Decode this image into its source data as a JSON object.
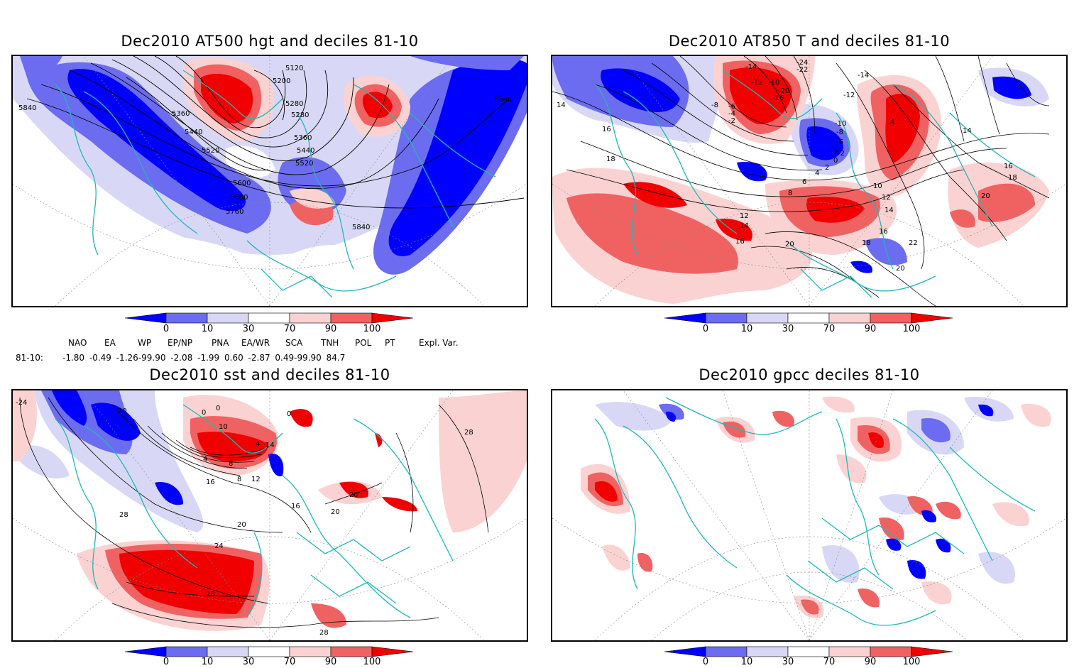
{
  "panels": [
    {
      "title": "Dec2010 AT500 hgt and deciles 81-10",
      "contour_labels": [
        "5120",
        "5200",
        "5280",
        "5280",
        "5360",
        "5360",
        "5440",
        "5440",
        "5520",
        "5520",
        "5600",
        "5680",
        "5760",
        "5840",
        "5840",
        "5840"
      ]
    },
    {
      "title": "Dec2010 AT850 T and deciles 81-10",
      "contour_labels": [
        "-24",
        "-22",
        "-14",
        "-12",
        "-10",
        "-20",
        "-16",
        "-14",
        "-12",
        "-8",
        "-6",
        "-4",
        "-2",
        "-10",
        "-8",
        "-6",
        "-2",
        "0",
        "2",
        "4",
        "6",
        "8",
        "10",
        "12",
        "12",
        "14",
        "14",
        "14",
        "16",
        "16",
        "16",
        "16",
        "18",
        "18",
        "18",
        "20",
        "20",
        "22",
        "20",
        "4",
        "14",
        "2"
      ]
    },
    {
      "title": "Dec2010 sst and deciles 81-10",
      "contour_labels": [
        "-24",
        "20",
        "0",
        "0",
        "0",
        "10",
        "4",
        "4",
        "8",
        "14",
        "12",
        "16",
        "16",
        "20",
        "20",
        "20",
        "28",
        "24",
        "28",
        "28",
        "28",
        "8"
      ]
    },
    {
      "title": "Dec2010 gpcc deciles 81-10",
      "contour_labels": []
    }
  ],
  "colorbar": {
    "ticks": [
      "0",
      "10",
      "30",
      "70",
      "90",
      "100"
    ],
    "colors": [
      "#0000ff",
      "#6c6cf0",
      "#d8d8f6",
      "#ffffff",
      "#fbd2d2",
      "#f06262",
      "#f00000"
    ]
  },
  "indices": {
    "headers": [
      "NAO",
      "EA",
      "WP",
      "EP/NP",
      "PNA",
      "EA/WR",
      "SCA",
      "TNH",
      "POL",
      "PT",
      "Expl. Var."
    ],
    "row_label": "81-10:",
    "values": "-1.80 -0.49 -1.26-99.90 -2.08 -1.99 0.60 -2.87 0.49-99.90 84.7"
  }
}
